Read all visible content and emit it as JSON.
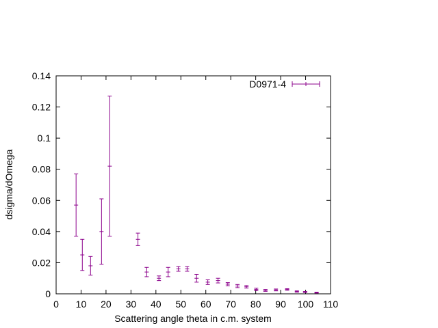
{
  "chart_data": {
    "type": "scatter",
    "xlabel": "Scattering angle theta in c.m. system",
    "ylabel": "dsigma/dOmega",
    "xlim": [
      0,
      110
    ],
    "ylim": [
      0,
      0.14
    ],
    "x_ticks": [
      "0",
      "10",
      "20",
      "30",
      "40",
      "50",
      "60",
      "70",
      "80",
      "90",
      "100",
      "110"
    ],
    "y_ticks": [
      "0",
      "0.02",
      "0.04",
      "0.06",
      "0.08",
      "0.1",
      "0.12",
      "0.14"
    ],
    "grid": false,
    "legend_position": "top-right",
    "series": [
      {
        "name": "D0971-4",
        "color": "#8b008b",
        "error_bars": true,
        "points": [
          {
            "x": 8.0,
            "y": 0.057,
            "err": 0.02
          },
          {
            "x": 10.5,
            "y": 0.025,
            "err": 0.01
          },
          {
            "x": 13.8,
            "y": 0.018,
            "err": 0.006
          },
          {
            "x": 18.2,
            "y": 0.04,
            "err": 0.021
          },
          {
            "x": 21.5,
            "y": 0.082,
            "err": 0.045
          },
          {
            "x": 32.8,
            "y": 0.035,
            "err": 0.004
          },
          {
            "x": 36.3,
            "y": 0.014,
            "err": 0.003
          },
          {
            "x": 41.2,
            "y": 0.01,
            "err": 0.0015
          },
          {
            "x": 44.9,
            "y": 0.014,
            "err": 0.003
          },
          {
            "x": 49.0,
            "y": 0.016,
            "err": 0.0015
          },
          {
            "x": 52.5,
            "y": 0.016,
            "err": 0.0015
          },
          {
            "x": 56.3,
            "y": 0.01,
            "err": 0.0025
          },
          {
            "x": 60.8,
            "y": 0.0075,
            "err": 0.0015
          },
          {
            "x": 64.9,
            "y": 0.0085,
            "err": 0.0015
          },
          {
            "x": 68.8,
            "y": 0.0062,
            "err": 0.001
          },
          {
            "x": 72.7,
            "y": 0.005,
            "err": 0.001
          },
          {
            "x": 76.3,
            "y": 0.0045,
            "err": 0.0008
          },
          {
            "x": 80.2,
            "y": 0.0028,
            "err": 0.0008
          },
          {
            "x": 83.9,
            "y": 0.0022,
            "err": 0.0006
          },
          {
            "x": 88.1,
            "y": 0.0025,
            "err": 0.0006
          },
          {
            "x": 92.6,
            "y": 0.0028,
            "err": 0.0005
          },
          {
            "x": 96.5,
            "y": 0.0015,
            "err": 0.0004
          },
          {
            "x": 99.8,
            "y": 0.0012,
            "err": 0.0003
          },
          {
            "x": 104.4,
            "y": 0.0008,
            "err": 0.0003
          }
        ]
      }
    ]
  }
}
